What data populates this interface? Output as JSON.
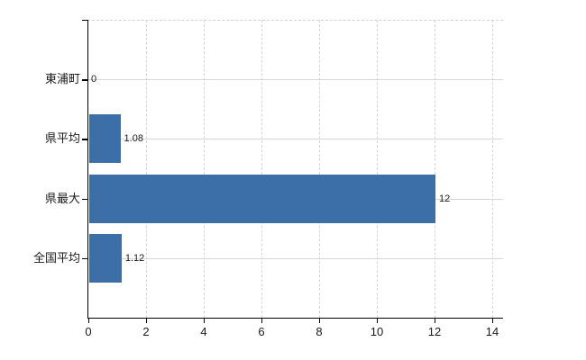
{
  "chart_data": {
    "type": "bar",
    "orientation": "horizontal",
    "categories": [
      "東浦町",
      "県平均",
      "県最大",
      "全国平均"
    ],
    "values": [
      0,
      1.08,
      12,
      1.12
    ],
    "value_labels": [
      "0",
      "1.08",
      "12",
      "1.12"
    ],
    "x_ticks": [
      0,
      2,
      4,
      6,
      8,
      10,
      12,
      14
    ],
    "x_tick_labels": [
      "0",
      "2",
      "4",
      "6",
      "8",
      "10",
      "12",
      "14"
    ],
    "xlim": [
      0,
      14
    ],
    "title": "",
    "xlabel": "",
    "ylabel": "",
    "grid": "on",
    "legend": "none",
    "colors": {
      "bar": "#3c6ea8",
      "axis": "#000000",
      "grid_solid": "#d5d8d2",
      "grid_dashed": "#d3d6d1",
      "text": "#1a1a1a",
      "background": "#ffffff"
    }
  }
}
